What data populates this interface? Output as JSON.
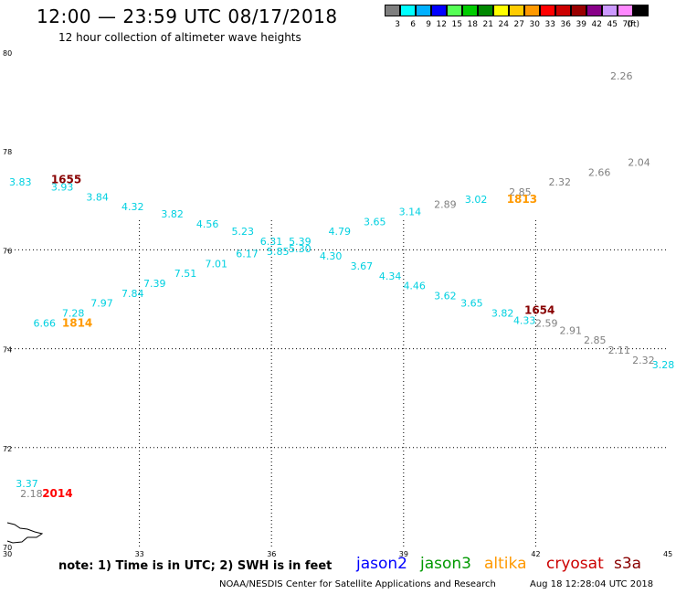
{
  "header": {
    "title": "12:00 — 23:59 UTC 08/17/2018",
    "subtitle": "12 hour collection of altimeter wave heights"
  },
  "color_scale": {
    "colors": [
      "#7f7f7f",
      "#00ffff",
      "#00b0ff",
      "#0000ff",
      "#55ff55",
      "#00cc00",
      "#008800",
      "#ffff00",
      "#ffcc00",
      "#ff9900",
      "#ff0000",
      "#cc0000",
      "#990000",
      "#880088",
      "#cc99ff",
      "#ff88ff",
      "#000000"
    ],
    "labels": [
      "3",
      "6",
      "9",
      "12",
      "15",
      "18",
      "21",
      "24",
      "27",
      "30",
      "33",
      "36",
      "39",
      "42",
      "45",
      "70",
      "(ft)"
    ]
  },
  "chart_data": {
    "type": "scatter",
    "xlim": [
      30,
      45
    ],
    "ylim": [
      70,
      80
    ],
    "x_ticks": [
      "30",
      "33",
      "36",
      "39",
      "42",
      "45"
    ],
    "y_ticks": [
      "70",
      "72",
      "74",
      "76",
      "78",
      "80"
    ],
    "tracks": [
      {
        "satellite": "s3a-track-a",
        "color": "#00d0e0",
        "points": [
          {
            "x": 30.25,
            "y": 77.3,
            "v": "3.83"
          },
          {
            "x": 31.2,
            "y": 77.2,
            "v": "3.93"
          },
          {
            "x": 32.0,
            "y": 77.0,
            "v": "3.84"
          },
          {
            "x": 32.8,
            "y": 76.8,
            "v": "4.32"
          },
          {
            "x": 33.7,
            "y": 76.65,
            "v": "3.82"
          },
          {
            "x": 34.5,
            "y": 76.45,
            "v": "4.56"
          },
          {
            "x": 35.3,
            "y": 76.3,
            "v": "5.23"
          },
          {
            "x": 35.95,
            "y": 76.1,
            "v": "6.31"
          },
          {
            "x": 36.1,
            "y": 75.9,
            "v": "5.85"
          },
          {
            "x": 36.6,
            "y": 75.95,
            "v": "5.30"
          },
          {
            "x": 37.3,
            "y": 75.8,
            "v": "4.30"
          },
          {
            "x": 38.0,
            "y": 75.6,
            "v": "3.67"
          },
          {
            "x": 38.65,
            "y": 75.4,
            "v": "4.34"
          },
          {
            "x": 39.2,
            "y": 75.2,
            "v": "4.46"
          },
          {
            "x": 39.9,
            "y": 75.0,
            "v": "3.62"
          },
          {
            "x": 40.5,
            "y": 74.85,
            "v": "3.65"
          },
          {
            "x": 41.2,
            "y": 74.65,
            "v": "3.82"
          },
          {
            "x": 41.7,
            "y": 74.5,
            "v": "4.33"
          }
        ]
      },
      {
        "satellite": "s3a-track-b",
        "color": "#00d0e0",
        "points": [
          {
            "x": 30.8,
            "y": 74.45,
            "v": "6.66"
          },
          {
            "x": 31.45,
            "y": 74.65,
            "v": "7.28"
          },
          {
            "x": 32.1,
            "y": 74.85,
            "v": "7.97"
          },
          {
            "x": 32.8,
            "y": 75.05,
            "v": "7.84"
          },
          {
            "x": 33.3,
            "y": 75.25,
            "v": "7.39"
          },
          {
            "x": 34.0,
            "y": 75.45,
            "v": "7.51"
          },
          {
            "x": 34.7,
            "y": 75.65,
            "v": "7.01"
          },
          {
            "x": 35.4,
            "y": 75.85,
            "v": "6.17"
          },
          {
            "x": 36.6,
            "y": 76.1,
            "v": "5.39"
          },
          {
            "x": 37.5,
            "y": 76.3,
            "v": "4.79"
          },
          {
            "x": 38.3,
            "y": 76.5,
            "v": "3.65"
          },
          {
            "x": 39.1,
            "y": 76.7,
            "v": "3.14"
          },
          {
            "x": 40.6,
            "y": 76.95,
            "v": "3.02"
          }
        ]
      },
      {
        "satellite": "cryosat-gray",
        "color": "#808080",
        "points": [
          {
            "x": 39.9,
            "y": 76.85,
            "v": "2.89"
          },
          {
            "x": 41.6,
            "y": 77.1,
            "v": "2.85"
          },
          {
            "x": 42.5,
            "y": 77.3,
            "v": "2.32"
          },
          {
            "x": 43.4,
            "y": 77.5,
            "v": "2.66"
          },
          {
            "x": 44.3,
            "y": 77.7,
            "v": "2.04"
          },
          {
            "x": 43.9,
            "y": 79.45,
            "v": "2.26"
          },
          {
            "x": 42.2,
            "y": 74.45,
            "v": "2.59"
          },
          {
            "x": 42.75,
            "y": 74.3,
            "v": "2.91"
          },
          {
            "x": 43.3,
            "y": 74.1,
            "v": "2.85"
          },
          {
            "x": 43.85,
            "y": 73.9,
            "v": "2.11"
          },
          {
            "x": 44.4,
            "y": 73.7,
            "v": "2.32"
          },
          {
            "x": 30.5,
            "y": 71.0,
            "v": "2.18"
          }
        ]
      },
      {
        "satellite": "s3a-south",
        "color": "#00d0e0",
        "points": [
          {
            "x": 44.85,
            "y": 73.6,
            "v": "3.28"
          },
          {
            "x": 30.4,
            "y": 71.2,
            "v": "3.37"
          }
        ]
      }
    ],
    "time_labels": [
      {
        "x": 31.2,
        "y": 77.35,
        "v": "1655",
        "color": "#880000"
      },
      {
        "x": 41.55,
        "y": 76.95,
        "v": "1813",
        "color": "#ff9900"
      },
      {
        "x": 31.45,
        "y": 74.45,
        "v": "1814",
        "color": "#ff9900"
      },
      {
        "x": 41.95,
        "y": 74.7,
        "v": "1654",
        "color": "#880000"
      },
      {
        "x": 31.0,
        "y": 71.0,
        "v": "2014",
        "color": "#ff0000"
      }
    ]
  },
  "footer": {
    "note": "note:  1) Time is in UTC;  2) SWH is in feet",
    "satellites": [
      {
        "name": "jason2",
        "color": "#0000ff"
      },
      {
        "name": "jason3",
        "color": "#009900"
      },
      {
        "name": "altika",
        "color": "#ff9900"
      },
      {
        "name": "cryosat",
        "color": "#cc0000"
      },
      {
        "name": "s3a",
        "color": "#880000"
      }
    ],
    "credit": "NOAA/NESDIS Center for Satellite Applications and Research",
    "timestamp": "Aug 18 12:28:04 UTC 2018"
  }
}
